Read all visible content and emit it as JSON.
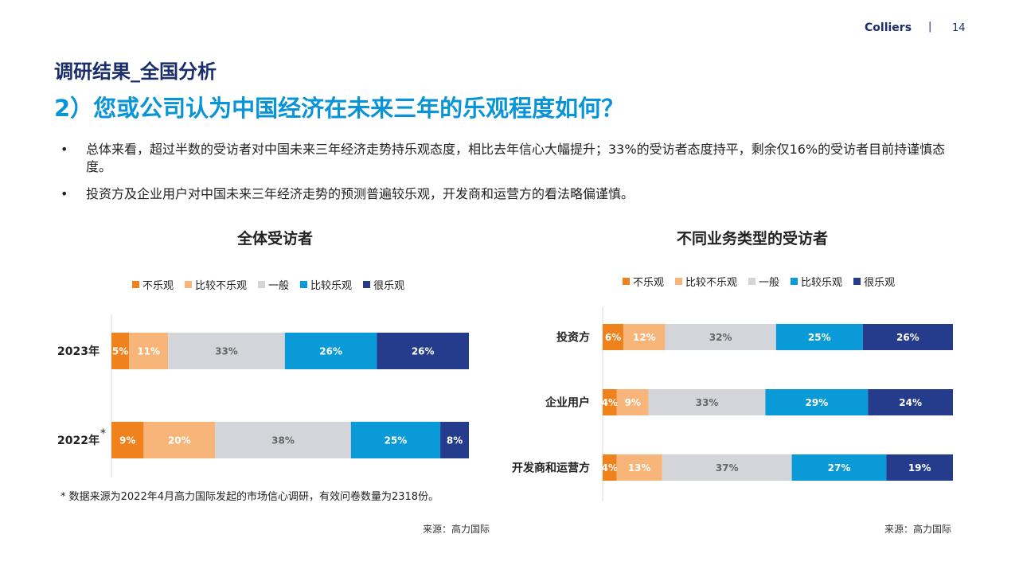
{
  "header": {
    "brand": "Colliers",
    "separator": "|",
    "page_number": "14"
  },
  "section_title": "调研结果_全国分析",
  "question": "2）您或公司认为中国经济在未来三年的乐观程度如何？",
  "bullets": [
    "总体来看，超过半数的受访者对中国未来三年经济走势持乐观态度，相比去年信心大幅提升；33%的受访者态度持平，剩余仅16%的受访者目前持谨慎态度。",
    "投资方及企业用户对中国未来三年经济走势的预测普遍较乐观，开发商和运营方的看法略偏谨慎。"
  ],
  "bullet_marker": "•",
  "footnote": "* 数据来源为2022年4月高力国际发起的市场信心调研，有效问卷数量为2318份。",
  "left_source": "来源：高力国际",
  "right_source": "来源：高力国际",
  "colors": {
    "不乐观": "#f0821e",
    "比较不乐观": "#f7b57a",
    "一般": "#d4d5da",
    "比较乐观": "#0a9ad8",
    "很乐观": "#253c8c",
    "label_light": "#ffffff",
    "label_dark": "#666666"
  },
  "chart_data": [
    {
      "type": "bar",
      "orientation": "horizontal-stacked",
      "title": "全体受访者",
      "categories": [
        "2023年",
        "2022年"
      ],
      "category_markers": [
        "",
        "*"
      ],
      "legend": [
        "不乐观",
        "比较不乐观",
        "一般",
        "比较乐观",
        "很乐观"
      ],
      "legend_position": "top",
      "series": [
        {
          "name": "不乐观",
          "values": [
            5,
            9
          ]
        },
        {
          "name": "比较不乐观",
          "values": [
            11,
            20
          ]
        },
        {
          "name": "一般",
          "values": [
            33,
            38
          ]
        },
        {
          "name": "比较乐观",
          "values": [
            26,
            25
          ]
        },
        {
          "name": "很乐观",
          "values": [
            26,
            8
          ]
        }
      ],
      "unit": "%"
    },
    {
      "type": "bar",
      "orientation": "horizontal-stacked",
      "title": "不同业务类型的受访者",
      "categories": [
        "投资方",
        "企业用户",
        "开发商和运营方"
      ],
      "legend": [
        "不乐观",
        "比较不乐观",
        "一般",
        "比较乐观",
        "很乐观"
      ],
      "legend_position": "top",
      "series": [
        {
          "name": "不乐观",
          "values": [
            6,
            4,
            4
          ]
        },
        {
          "name": "比较不乐观",
          "values": [
            12,
            9,
            13
          ]
        },
        {
          "name": "一般",
          "values": [
            32,
            33,
            37
          ]
        },
        {
          "name": "比较乐观",
          "values": [
            25,
            29,
            27
          ]
        },
        {
          "name": "很乐观",
          "values": [
            26,
            24,
            19
          ]
        }
      ],
      "unit": "%"
    }
  ]
}
